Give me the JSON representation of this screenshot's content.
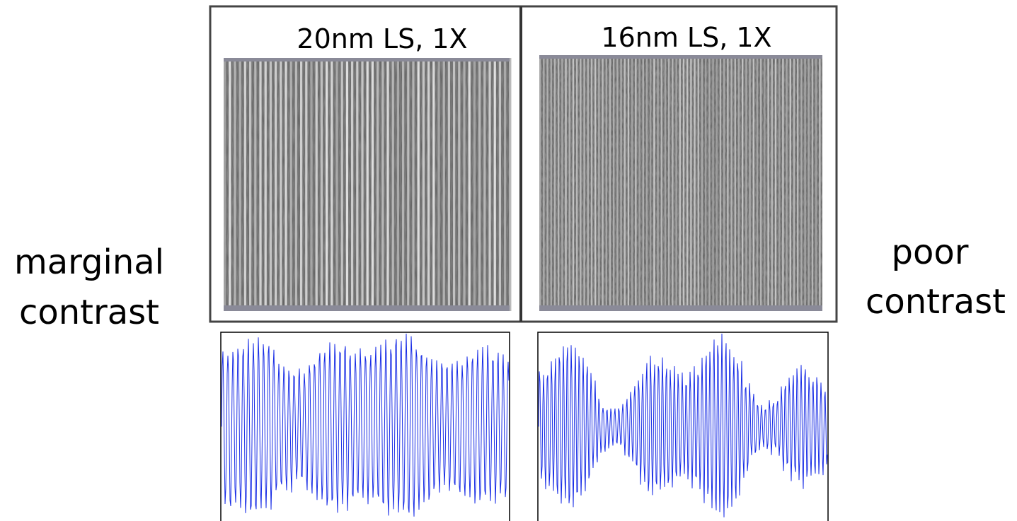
{
  "panels": [
    {
      "title": "20nm LS, 1X"
    },
    {
      "title": "16nm LS, 1X"
    }
  ],
  "left_label": [
    "marginal",
    "contrast"
  ],
  "right_label": [
    "poor",
    "contrast"
  ]
}
